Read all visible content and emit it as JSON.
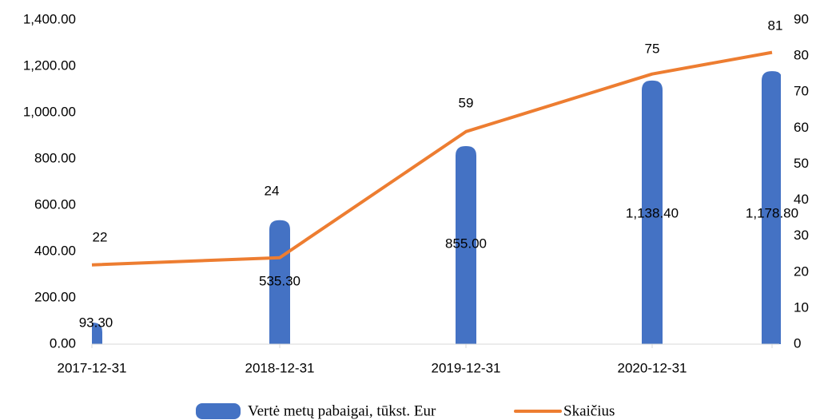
{
  "chart_data": {
    "type": "bar-line",
    "categories": [
      "2017-12-31",
      "2018-12-31",
      "2019-12-31",
      "2020-12-31",
      null
    ],
    "series": [
      {
        "name": "Vertė metų pabaigai, tūkst. Eur",
        "type": "bar",
        "color": "#4472c4",
        "values": [
          93.3,
          535.3,
          855.0,
          1138.4,
          1178.8
        ],
        "value_labels": [
          "93.30",
          "535.30",
          "855.00",
          "1,138.40",
          "1,178.80"
        ]
      },
      {
        "name": "Skaičius",
        "type": "line",
        "color": "#ed7d31",
        "axis": "y2",
        "values": [
          22,
          24,
          59,
          75,
          81
        ]
      }
    ],
    "ylim": [
      0,
      1400
    ],
    "yticks": [
      {
        "value": 0,
        "label": "0.00"
      },
      {
        "value": 200,
        "label": "200.00"
      },
      {
        "value": 400,
        "label": "400.00"
      },
      {
        "value": 600,
        "label": "600.00"
      },
      {
        "value": 800,
        "label": "800.00"
      },
      {
        "value": 1000,
        "label": "1,000.00"
      },
      {
        "value": 1200,
        "label": "1,200.00"
      },
      {
        "value": 1400,
        "label": "1,400.00"
      }
    ],
    "y2lim": [
      0,
      90
    ],
    "y2ticks": [
      0,
      10,
      20,
      30,
      40,
      50,
      60,
      70,
      80,
      90
    ],
    "grid": false,
    "legend": "bottom"
  }
}
